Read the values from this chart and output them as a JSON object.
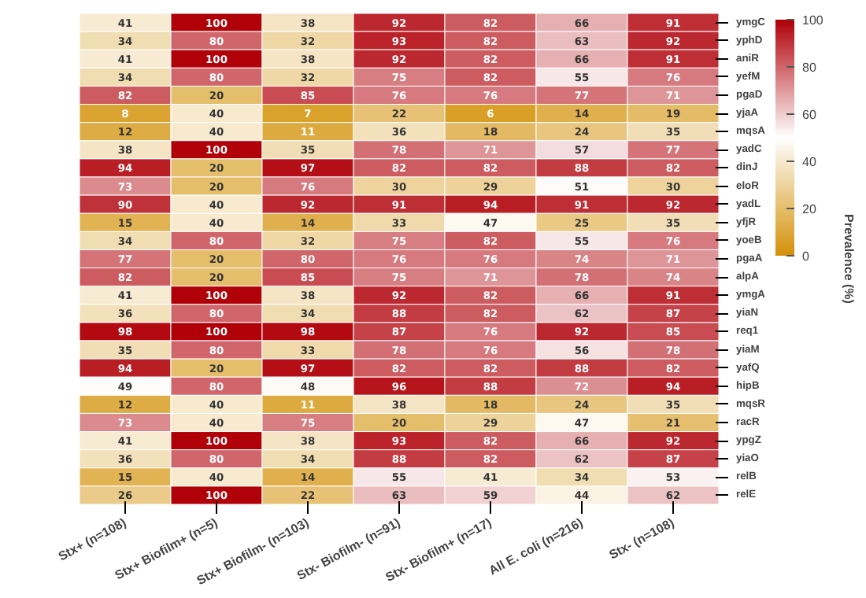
{
  "chart_data": {
    "type": "heatmap",
    "categories": [
      "Stx+ (n=108)",
      "Stx+ Biofilm+ (n=5)",
      "Stx+ Biofilm- (n=103)",
      "Stx- Biofilm- (n=91)",
      "Stx- Biofilm+ (n=17)",
      "All E. coli (n=216)",
      "Stx- (n=108)"
    ],
    "y_categories": [
      "ymgC",
      "yphD",
      "aniR",
      "yefM",
      "pgaD",
      "yjaA",
      "mqsA",
      "yadC",
      "dinJ",
      "eloR",
      "yadL",
      "yfjR",
      "yoeB",
      "pgaA",
      "alpA",
      "ymgA",
      "yiaN",
      "req1",
      "yiaM",
      "yafQ",
      "hipB",
      "mqsR",
      "racR",
      "ypgZ",
      "yiaO",
      "relB",
      "relE"
    ],
    "cells": [
      [
        41,
        100,
        38,
        92,
        82,
        66,
        91
      ],
      [
        34,
        80,
        32,
        93,
        82,
        63,
        92
      ],
      [
        41,
        100,
        38,
        92,
        82,
        66,
        91
      ],
      [
        34,
        80,
        32,
        75,
        82,
        55,
        76
      ],
      [
        82,
        20,
        85,
        76,
        76,
        77,
        71
      ],
      [
        8,
        40,
        7,
        22,
        6,
        14,
        19
      ],
      [
        12,
        40,
        11,
        36,
        18,
        24,
        35
      ],
      [
        38,
        100,
        35,
        78,
        71,
        57,
        77
      ],
      [
        94,
        20,
        97,
        82,
        82,
        88,
        82
      ],
      [
        73,
        20,
        76,
        30,
        29,
        51,
        30
      ],
      [
        90,
        40,
        92,
        91,
        94,
        91,
        92
      ],
      [
        15,
        40,
        14,
        33,
        47,
        25,
        35
      ],
      [
        34,
        80,
        32,
        75,
        82,
        55,
        76
      ],
      [
        77,
        20,
        80,
        76,
        76,
        74,
        71
      ],
      [
        82,
        20,
        85,
        75,
        71,
        78,
        74
      ],
      [
        41,
        100,
        38,
        92,
        82,
        66,
        91
      ],
      [
        36,
        80,
        34,
        88,
        82,
        62,
        87
      ],
      [
        98,
        100,
        98,
        87,
        76,
        92,
        85
      ],
      [
        35,
        80,
        33,
        78,
        76,
        56,
        78
      ],
      [
        94,
        20,
        97,
        82,
        82,
        88,
        82
      ],
      [
        49,
        80,
        48,
        96,
        88,
        72,
        94
      ],
      [
        12,
        40,
        11,
        38,
        18,
        24,
        35
      ],
      [
        73,
        40,
        75,
        20,
        29,
        47,
        21
      ],
      [
        41,
        100,
        38,
        93,
        82,
        66,
        92
      ],
      [
        36,
        80,
        34,
        88,
        82,
        62,
        87
      ],
      [
        15,
        40,
        14,
        55,
        41,
        34,
        53
      ],
      [
        26,
        100,
        22,
        63,
        59,
        44,
        62
      ]
    ],
    "data_labels": true,
    "clabel": "Prevalence (%)",
    "clim": [
      0,
      100
    ],
    "cticks": [
      0,
      20,
      40,
      60,
      80,
      100
    ]
  }
}
